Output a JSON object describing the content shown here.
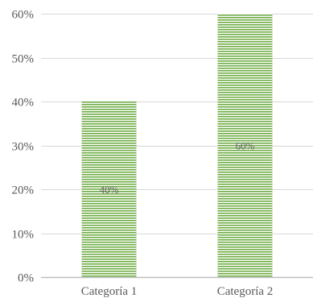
{
  "chart_data": {
    "type": "bar",
    "categories": [
      "Categoría 1",
      "Categoría 2"
    ],
    "values": [
      40,
      60
    ],
    "data_labels": [
      "40%",
      "60%"
    ],
    "y_tick_labels": [
      "0%",
      "10%",
      "20%",
      "30%",
      "40%",
      "50%",
      "60%"
    ],
    "y_ticks": [
      0,
      10,
      20,
      30,
      40,
      50,
      60
    ],
    "ylim": [
      0,
      60
    ],
    "grid": true,
    "legend": "none",
    "title": "",
    "xlabel": "",
    "ylabel": ""
  },
  "colors": {
    "bar_fill": "#ffffff",
    "bar_stripe": "#70ad47",
    "gridline": "#d9d9d9",
    "axis_line": "#bfbfbf",
    "text": "#595959"
  }
}
